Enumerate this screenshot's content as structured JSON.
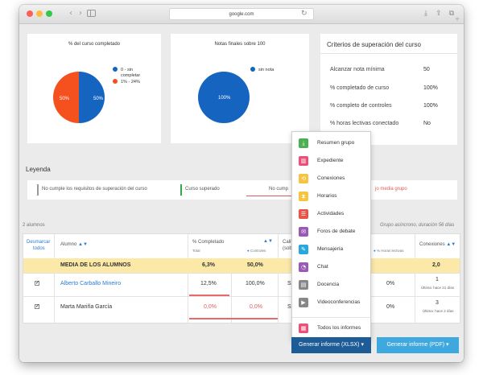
{
  "browser": {
    "url": "google.com"
  },
  "charts": {
    "completion": {
      "title": "% del curso completado",
      "legend": [
        {
          "label_line1": "0 - sin",
          "label_line2": "completar",
          "color": "#1565c0"
        },
        {
          "label": "1% - 24%",
          "color": "#f4511e"
        }
      ],
      "slices": [
        {
          "label": "50%",
          "value": 50,
          "color": "#1565c0"
        },
        {
          "label": "50%",
          "value": 50,
          "color": "#f4511e"
        }
      ]
    },
    "grades": {
      "title": "Notas finales sobre 100",
      "legend": [
        {
          "label": "sin nota",
          "color": "#1565c0"
        }
      ],
      "slices": [
        {
          "label": "100%",
          "value": 100,
          "color": "#1565c0"
        }
      ]
    }
  },
  "chart_data": [
    {
      "type": "pie",
      "title": "% del curso completado",
      "categories": [
        "0 - sin completar",
        "1% - 24%"
      ],
      "values": [
        50,
        50
      ]
    },
    {
      "type": "pie",
      "title": "Notas finales sobre 100",
      "categories": [
        "sin nota"
      ],
      "values": [
        100
      ]
    }
  ],
  "criteria": {
    "title": "Criterios de superación del curso",
    "rows": [
      {
        "label": "Alcanzar nota mínima",
        "value": "50"
      },
      {
        "label": "% completado de curso",
        "value": "100%"
      },
      {
        "label": "% completo de controles",
        "value": "100%"
      },
      {
        "label": "% horas lectivas conectado",
        "value": "No"
      }
    ]
  },
  "legend": {
    "title": "Leyenda",
    "items": {
      "not_met": "No cumple los requisitos de superación del curso",
      "passed": "Curso superado",
      "not_met_short": "No cump",
      "below_avg": "jo media grupo"
    }
  },
  "summary": {
    "students": "2 alumnos",
    "group_info": "Grupo asíncrono, duración 56 días"
  },
  "table": {
    "headers": {
      "uncheck": "Desmarcar",
      "uncheck2": "todos",
      "student": "Alumno",
      "completed": "% Completado",
      "total": "Total",
      "controls": "Controles",
      "grade": "Calif",
      "grade_sub": "(sob",
      "hours": "% Horas lectivas",
      "connections": "Conexiones"
    },
    "average": {
      "label": "MEDIA DE LOS ALUMNOS",
      "total": "6,3%",
      "controls": "50,0%",
      "connections": "2,0"
    },
    "rows": [
      {
        "name": "Alberto Carballo Mineiro",
        "total": "12,5%",
        "controls": "100,0%",
        "grade": "Si",
        "hours": "0%",
        "connections": "1",
        "last": "Última: hace 21 días"
      },
      {
        "name": "Marta Mariña García",
        "total": "0,0%",
        "controls": "0,0%",
        "grade": "Si",
        "hours": "0%",
        "connections": "3",
        "last": "Última: hace 2 días"
      }
    ]
  },
  "menu": {
    "items": [
      {
        "label": "Resumen grupo",
        "icon": "download-icon",
        "color": "#4caf50",
        "glyph": "⤓"
      },
      {
        "label": "Expediente",
        "icon": "bar-chart-icon",
        "color": "#e9507a",
        "glyph": "▥"
      },
      {
        "label": "Conexiones",
        "icon": "history-icon",
        "color": "#f5c542",
        "glyph": "⟲"
      },
      {
        "label": "Horarios",
        "icon": "hourglass-icon",
        "color": "#f5c542",
        "glyph": "⧗"
      },
      {
        "label": "Actividades",
        "icon": "list-icon",
        "color": "#e95348",
        "glyph": "☰"
      },
      {
        "label": "Foros de debate",
        "icon": "chat-bubbles-icon",
        "color": "#9b59b6",
        "glyph": "✉"
      },
      {
        "label": "Mensajería",
        "icon": "message-icon",
        "color": "#29a7df",
        "glyph": "✎"
      },
      {
        "label": "Chat",
        "icon": "chat-icon",
        "color": "#9b59b6",
        "glyph": "◔"
      },
      {
        "label": "Docencia",
        "icon": "presentation-icon",
        "color": "#888888",
        "glyph": "▤"
      },
      {
        "label": "Videoconferencias",
        "icon": "video-icon",
        "color": "#888888",
        "glyph": "▶"
      }
    ],
    "all": {
      "label": "Todos los informes",
      "icon": "reports-icon",
      "color": "#e9507a",
      "glyph": "▦"
    }
  },
  "buttons": {
    "xlsx": "Generar informe (XLSX) ▾",
    "pdf": "Generar informe (PDF) ▾"
  }
}
